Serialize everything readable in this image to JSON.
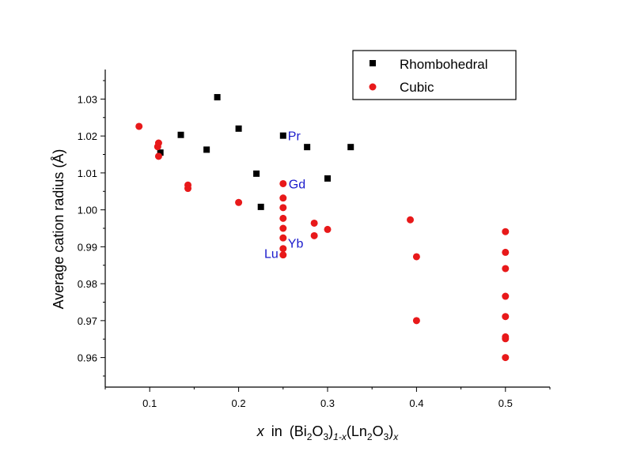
{
  "chart_data": {
    "type": "scatter",
    "title": "",
    "xlabel": {
      "x": "x",
      "in": "in",
      "bi": "Bi",
      "two": "2",
      "o": "O",
      "three": "3",
      "minus": "1-x",
      "ln": "Ln",
      "sub_x": "x"
    },
    "ylabel": "Average cation radius (Å)",
    "xlim": [
      0.05,
      0.55
    ],
    "ylim": [
      0.952,
      1.038
    ],
    "xticks": [
      0.1,
      0.2,
      0.3,
      0.4,
      0.5
    ],
    "xtick_labels": [
      "0.1",
      "0.2",
      "0.3",
      "0.4",
      "0.5"
    ],
    "yticks": [
      0.96,
      0.97,
      0.98,
      0.99,
      1.0,
      1.01,
      1.02,
      1.03
    ],
    "ytick_labels": [
      "0.96",
      "0.97",
      "0.98",
      "0.99",
      "1.00",
      "1.01",
      "1.02",
      "1.03"
    ],
    "legend_position": "top-right",
    "series": [
      {
        "name": "Rhombohedral",
        "marker": "square",
        "color": "#000000",
        "points": [
          [
            0.112,
            1.0155
          ],
          [
            0.135,
            1.0203
          ],
          [
            0.164,
            1.0163
          ],
          [
            0.176,
            1.0305
          ],
          [
            0.2,
            1.022
          ],
          [
            0.22,
            1.0098
          ],
          [
            0.225,
            1.0008
          ],
          [
            0.25,
            1.0201
          ],
          [
            0.277,
            1.017
          ],
          [
            0.3,
            1.0085
          ],
          [
            0.326,
            1.017
          ]
        ]
      },
      {
        "name": "Cubic",
        "marker": "circle",
        "color": "#e8191a",
        "points": [
          [
            0.088,
            1.0226
          ],
          [
            0.109,
            1.0171
          ],
          [
            0.11,
            1.0181
          ],
          [
            0.11,
            1.0145
          ],
          [
            0.143,
            1.0067
          ],
          [
            0.143,
            1.0058
          ],
          [
            0.2,
            1.002
          ],
          [
            0.25,
            1.0071
          ],
          [
            0.25,
            1.0032
          ],
          [
            0.25,
            1.0006
          ],
          [
            0.25,
            0.9977
          ],
          [
            0.25,
            0.995
          ],
          [
            0.25,
            0.9924
          ],
          [
            0.25,
            0.9895
          ],
          [
            0.25,
            0.9878
          ],
          [
            0.285,
            0.9964
          ],
          [
            0.285,
            0.993
          ],
          [
            0.3,
            0.9947
          ],
          [
            0.393,
            0.9973
          ],
          [
            0.4,
            0.9873
          ],
          [
            0.4,
            0.97
          ],
          [
            0.5,
            0.9941
          ],
          [
            0.5,
            0.9885
          ],
          [
            0.5,
            0.9841
          ],
          [
            0.5,
            0.9766
          ],
          [
            0.5,
            0.9711
          ],
          [
            0.5,
            0.9656
          ],
          [
            0.5,
            0.9651
          ],
          [
            0.5,
            0.96
          ]
        ]
      }
    ],
    "annotations": [
      {
        "text": "Pr",
        "x": 0.25,
        "y": 1.0201,
        "color": "#1a1acc"
      },
      {
        "text": "Gd",
        "x": 0.25,
        "y": 1.0071,
        "color": "#1a1acc"
      },
      {
        "text": "Yb",
        "x": 0.25,
        "y": 0.9895,
        "color": "#1a1acc"
      },
      {
        "text": "Lu",
        "x": 0.25,
        "y": 0.9878,
        "color": "#1a1acc"
      }
    ]
  }
}
